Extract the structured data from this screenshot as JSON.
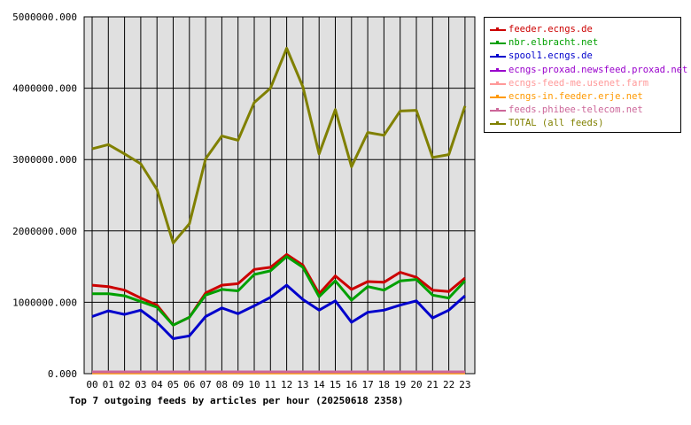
{
  "chart_data": {
    "type": "line",
    "title": "Top 7 outgoing feeds by articles per hour (20250618 2358)",
    "xlabel": "",
    "ylabel": "",
    "categories": [
      "00",
      "01",
      "02",
      "03",
      "04",
      "05",
      "06",
      "07",
      "08",
      "09",
      "10",
      "11",
      "12",
      "13",
      "14",
      "15",
      "16",
      "17",
      "18",
      "19",
      "20",
      "21",
      "22",
      "23"
    ],
    "yticks": [
      "0.000",
      "1000000.000",
      "2000000.000",
      "3000000.000",
      "4000000.000",
      "5000000.000"
    ],
    "ylim": [
      0,
      5000000
    ],
    "grid": true,
    "legend_position": "right",
    "series": [
      {
        "name": "feeder.ecngs.de",
        "color": "#cc0000",
        "values": [
          1240000,
          1220000,
          1170000,
          1060000,
          960000,
          680000,
          790000,
          1130000,
          1240000,
          1260000,
          1460000,
          1490000,
          1670000,
          1520000,
          1120000,
          1370000,
          1180000,
          1290000,
          1280000,
          1420000,
          1350000,
          1170000,
          1150000,
          1340000
        ]
      },
      {
        "name": "nbr.elbracht.net",
        "color": "#00a000",
        "values": [
          1120000,
          1120000,
          1090000,
          1010000,
          930000,
          680000,
          790000,
          1100000,
          1180000,
          1160000,
          1390000,
          1440000,
          1640000,
          1490000,
          1080000,
          1300000,
          1030000,
          1220000,
          1170000,
          1300000,
          1320000,
          1100000,
          1060000,
          1300000
        ]
      },
      {
        "name": "spool1.ecngs.de",
        "color": "#0000cc",
        "values": [
          800000,
          880000,
          830000,
          890000,
          720000,
          490000,
          530000,
          800000,
          920000,
          840000,
          950000,
          1070000,
          1240000,
          1040000,
          890000,
          1020000,
          720000,
          860000,
          890000,
          960000,
          1020000,
          780000,
          890000,
          1090000
        ]
      },
      {
        "name": "ecngs-proxad.newsfeed.proxad.net",
        "color": "#9900cc",
        "values": [
          20000,
          20000,
          20000,
          20000,
          20000,
          20000,
          20000,
          20000,
          20000,
          20000,
          20000,
          20000,
          20000,
          20000,
          20000,
          20000,
          20000,
          20000,
          20000,
          20000,
          20000,
          20000,
          20000,
          20000
        ]
      },
      {
        "name": "ecngs-feed-me.usenet.farm",
        "color": "#ff9999",
        "values": [
          15000,
          15000,
          15000,
          15000,
          15000,
          15000,
          15000,
          15000,
          15000,
          15000,
          15000,
          15000,
          15000,
          15000,
          15000,
          15000,
          15000,
          15000,
          15000,
          15000,
          15000,
          15000,
          15000,
          15000
        ]
      },
      {
        "name": "ecngs-in.feeder.erje.net",
        "color": "#ff9900",
        "values": [
          10000,
          10000,
          10000,
          10000,
          10000,
          10000,
          10000,
          10000,
          10000,
          10000,
          10000,
          10000,
          10000,
          10000,
          10000,
          10000,
          10000,
          10000,
          10000,
          10000,
          10000,
          10000,
          10000,
          10000
        ]
      },
      {
        "name": "feeds.phibee-telecom.net",
        "color": "#cc6699",
        "values": [
          25000,
          25000,
          25000,
          25000,
          25000,
          25000,
          25000,
          25000,
          25000,
          25000,
          25000,
          25000,
          25000,
          25000,
          25000,
          25000,
          25000,
          25000,
          25000,
          25000,
          25000,
          25000,
          25000,
          25000
        ]
      },
      {
        "name": "TOTAL (all feeds)",
        "color": "#808000",
        "values": [
          3150000,
          3210000,
          3080000,
          2940000,
          2580000,
          1830000,
          2100000,
          3010000,
          3330000,
          3270000,
          3800000,
          4000000,
          4560000,
          4020000,
          3080000,
          3700000,
          2900000,
          3380000,
          3340000,
          3680000,
          3690000,
          3030000,
          3070000,
          3750000
        ]
      }
    ]
  }
}
